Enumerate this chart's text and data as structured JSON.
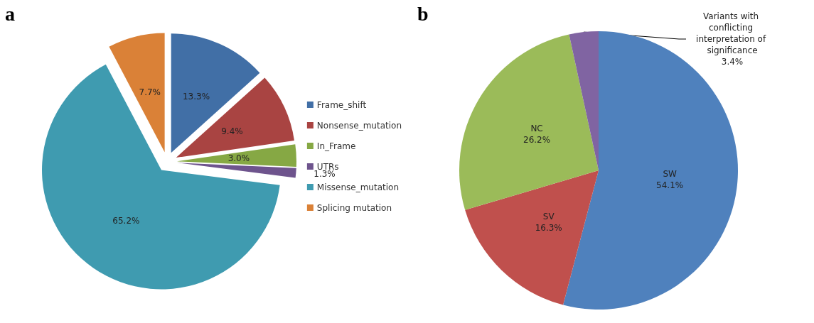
{
  "chart_data": [
    {
      "type": "pie",
      "title": "a",
      "categories": [
        "Frame_shift",
        "Nonsense_mutation",
        "In_Frame",
        "UTRs",
        "Missense_mutation",
        "Splicing mutation"
      ],
      "values": [
        13.3,
        9.4,
        3.0,
        1.3,
        65.2,
        7.7
      ],
      "value_labels": [
        "13.3%",
        "9.4%",
        "3.0%",
        "1.3%",
        "65.2%",
        "7.7%"
      ],
      "colors": [
        "#416fa6",
        "#a94442",
        "#86a844",
        "#6e548d",
        "#3f9bb0",
        "#da8137"
      ],
      "legend": "right"
    },
    {
      "type": "pie",
      "title": "b",
      "categories": [
        "SW",
        "SV",
        "NC",
        "Variants with conflicting interpretation of significance"
      ],
      "values": [
        54.1,
        16.3,
        26.2,
        3.4
      ],
      "value_labels": [
        "54.1%",
        "16.3%",
        "26.2%",
        "3.4%"
      ],
      "colors": [
        "#4f81bd",
        "#c0504d",
        "#9bbb59",
        "#8064a2"
      ]
    }
  ]
}
